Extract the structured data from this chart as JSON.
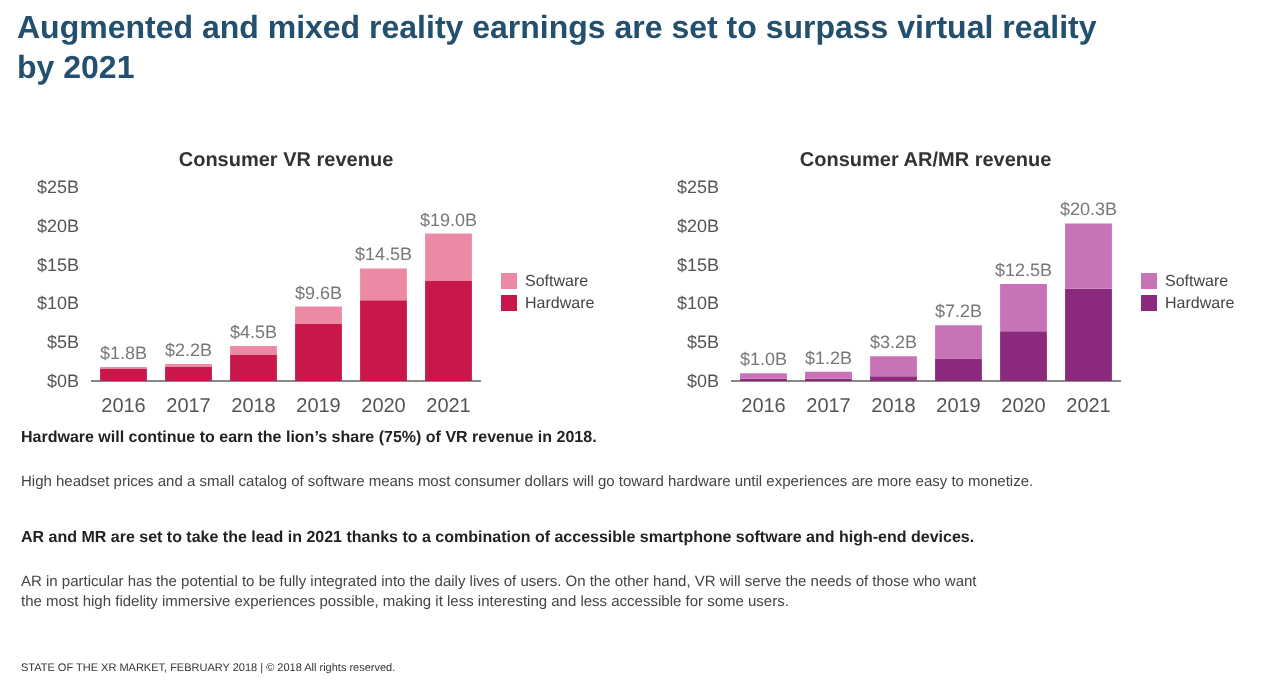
{
  "chart_data": [
    {
      "type": "bar",
      "title": "Consumer VR revenue",
      "categories": [
        "2016",
        "2017",
        "2018",
        "2019",
        "2020",
        "2021"
      ],
      "stacked": true,
      "series": [
        {
          "name": "Hardware",
          "color": "#c8174a",
          "values": [
            1.6,
            1.8,
            3.4,
            7.4,
            10.4,
            12.9
          ]
        },
        {
          "name": "Software",
          "color": "#ec8aa6",
          "values": [
            0.2,
            0.4,
            1.1,
            2.2,
            4.1,
            6.1
          ]
        }
      ],
      "totals": [
        "$1.8B",
        "$2.2B",
        "$4.5B",
        "$9.6B",
        "$14.5B",
        "$19.0B"
      ],
      "ylim": [
        0,
        25
      ],
      "yticks": [
        {
          "value": 0,
          "label": "$0B"
        },
        {
          "value": 5,
          "label": "$5B"
        },
        {
          "value": 10,
          "label": "$10B"
        },
        {
          "value": 15,
          "label": "$15B"
        },
        {
          "value": 20,
          "label": "$20B"
        },
        {
          "value": 25,
          "label": "$25B"
        }
      ],
      "legend": "right",
      "grid": false,
      "annotations": [
        "Augmented and mixed reality earnings are set to surpass virtual reality by 2021",
        "Hardware will continue to earn the lion’s share (75%) of VR revenue in 2018.",
        "High headset prices and a small catalog of software means most consumer dollars will go toward hardware until experiences are more easy to monetize.",
        "AR and MR are set to take the lead in 2021 thanks to a combination of accessible smartphone software and high-end devices.",
        "AR in particular has the potential to be fully integrated into the daily lives of users. On the other hand, VR will serve the needs of those who want the most high fidelity immersive experiences possible, making it less interesting and less accessible for some users.",
        "STATE OF THE XR MARKET, FEBRUARY 2018 | © 2018 All rights reserved."
      ]
    },
    {
      "type": "bar",
      "title": "Consumer AR/MR revenue",
      "categories": [
        "2016",
        "2017",
        "2018",
        "2019",
        "2020",
        "2021"
      ],
      "stacked": true,
      "series": [
        {
          "name": "Hardware",
          "color": "#8b2a7c",
          "values": [
            0.3,
            0.3,
            0.6,
            2.9,
            6.4,
            11.9
          ]
        },
        {
          "name": "Software",
          "color": "#c873b8",
          "values": [
            0.7,
            0.9,
            2.6,
            4.3,
            6.1,
            8.4
          ]
        }
      ],
      "totals": [
        "$1.0B",
        "$1.2B",
        "$3.2B",
        "$7.2B",
        "$12.5B",
        "$20.3B"
      ],
      "ylim": [
        0,
        25
      ],
      "yticks": [
        {
          "value": 0,
          "label": "$0B"
        },
        {
          "value": 5,
          "label": "$5B"
        },
        {
          "value": 10,
          "label": "$10B"
        },
        {
          "value": 15,
          "label": "$15B"
        },
        {
          "value": 20,
          "label": "$20B"
        },
        {
          "value": 25,
          "label": "$25B"
        }
      ],
      "legend": "right",
      "grid": false
    }
  ]
}
